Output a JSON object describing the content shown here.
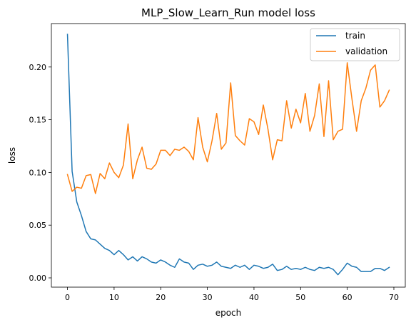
{
  "chart_data": {
    "type": "line",
    "title": "MLP_Slow_Learn_Run model loss",
    "xlabel": "epoch",
    "ylabel": "loss",
    "xlim": [
      -3.45,
      72.45
    ],
    "ylim": [
      -0.0088,
      0.2412
    ],
    "xticks": [
      0,
      10,
      20,
      30,
      40,
      50,
      60,
      70
    ],
    "xtick_labels": [
      "0",
      "10",
      "20",
      "30",
      "40",
      "50",
      "60",
      "70"
    ],
    "yticks": [
      0.0,
      0.05,
      0.1,
      0.15,
      0.2
    ],
    "ytick_labels": [
      "0.00",
      "0.05",
      "0.10",
      "0.15",
      "0.20"
    ],
    "grid": false,
    "legend_position": "top-right",
    "series": [
      {
        "name": "train",
        "color": "#1f77b4",
        "x": [
          0,
          1,
          2,
          3,
          4,
          5,
          6,
          7,
          8,
          9,
          10,
          11,
          12,
          13,
          14,
          15,
          16,
          17,
          18,
          19,
          20,
          21,
          22,
          23,
          24,
          25,
          26,
          27,
          28,
          29,
          30,
          31,
          32,
          33,
          34,
          35,
          36,
          37,
          38,
          39,
          40,
          41,
          42,
          43,
          44,
          45,
          46,
          47,
          48,
          49,
          50,
          51,
          52,
          53,
          54,
          55,
          56,
          57,
          58,
          59,
          60,
          61,
          62,
          63,
          64,
          65,
          66,
          67,
          68,
          69
        ],
        "values": [
          0.231,
          0.101,
          0.072,
          0.059,
          0.044,
          0.037,
          0.036,
          0.032,
          0.028,
          0.026,
          0.022,
          0.026,
          0.022,
          0.017,
          0.02,
          0.016,
          0.02,
          0.018,
          0.015,
          0.014,
          0.017,
          0.015,
          0.012,
          0.01,
          0.018,
          0.015,
          0.014,
          0.008,
          0.012,
          0.013,
          0.011,
          0.012,
          0.015,
          0.011,
          0.01,
          0.009,
          0.012,
          0.01,
          0.012,
          0.008,
          0.012,
          0.011,
          0.009,
          0.01,
          0.013,
          0.007,
          0.008,
          0.011,
          0.008,
          0.009,
          0.008,
          0.01,
          0.008,
          0.007,
          0.01,
          0.009,
          0.01,
          0.008,
          0.003,
          0.008,
          0.014,
          0.011,
          0.01,
          0.006,
          0.006,
          0.006,
          0.009,
          0.009,
          0.007,
          0.01
        ]
      },
      {
        "name": "validation",
        "color": "#ff7f0e",
        "x": [
          0,
          1,
          2,
          3,
          4,
          5,
          6,
          7,
          8,
          9,
          10,
          11,
          12,
          13,
          14,
          15,
          16,
          17,
          18,
          19,
          20,
          21,
          22,
          23,
          24,
          25,
          26,
          27,
          28,
          29,
          30,
          31,
          32,
          33,
          34,
          35,
          36,
          37,
          38,
          39,
          40,
          41,
          42,
          43,
          44,
          45,
          46,
          47,
          48,
          49,
          50,
          51,
          52,
          53,
          54,
          55,
          56,
          57,
          58,
          59,
          60,
          61,
          62,
          63,
          64,
          65,
          66,
          67,
          68,
          69
        ],
        "values": [
          0.098,
          0.082,
          0.086,
          0.085,
          0.097,
          0.098,
          0.08,
          0.099,
          0.094,
          0.109,
          0.1,
          0.095,
          0.107,
          0.146,
          0.094,
          0.112,
          0.124,
          0.104,
          0.103,
          0.108,
          0.121,
          0.121,
          0.116,
          0.122,
          0.121,
          0.124,
          0.12,
          0.112,
          0.152,
          0.124,
          0.11,
          0.13,
          0.156,
          0.122,
          0.128,
          0.185,
          0.135,
          0.13,
          0.126,
          0.151,
          0.148,
          0.136,
          0.164,
          0.141,
          0.112,
          0.131,
          0.13,
          0.168,
          0.142,
          0.16,
          0.147,
          0.175,
          0.139,
          0.154,
          0.184,
          0.134,
          0.187,
          0.131,
          0.139,
          0.141,
          0.204,
          0.17,
          0.139,
          0.168,
          0.18,
          0.197,
          0.202,
          0.162,
          0.168,
          0.178
        ]
      }
    ]
  }
}
